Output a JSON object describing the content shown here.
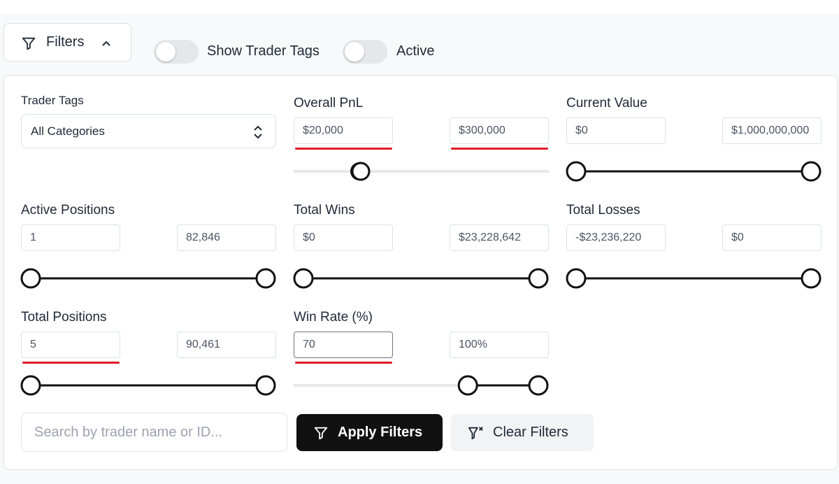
{
  "toolbar": {
    "filters_button": "Filters",
    "toggles": [
      {
        "label": "Show Trader Tags"
      },
      {
        "label": "Active"
      }
    ]
  },
  "trader_tags": {
    "label": "Trader Tags",
    "selected": "All Categories"
  },
  "filters": [
    {
      "label": "Overall PnL",
      "min": "$20,000",
      "max": "$300,000"
    },
    {
      "label": "Current Value",
      "min": "$0",
      "max": "$1,000,000,000"
    },
    {
      "label": "Active Positions",
      "min": "1",
      "max": "82,846"
    },
    {
      "label": "Total Wins",
      "min": "$0",
      "max": "$23,228,642"
    },
    {
      "label": "Total Losses",
      "min": "-$23,236,220",
      "max": "$0"
    },
    {
      "label": "Total Positions",
      "min": "5",
      "max": "90,461"
    },
    {
      "label": "Win Rate (%)",
      "min": "70",
      "max": "100%"
    }
  ],
  "search": {
    "placeholder": "Search by trader name or ID..."
  },
  "buttons": {
    "apply": "Apply Filters",
    "clear": "Clear Filters"
  }
}
